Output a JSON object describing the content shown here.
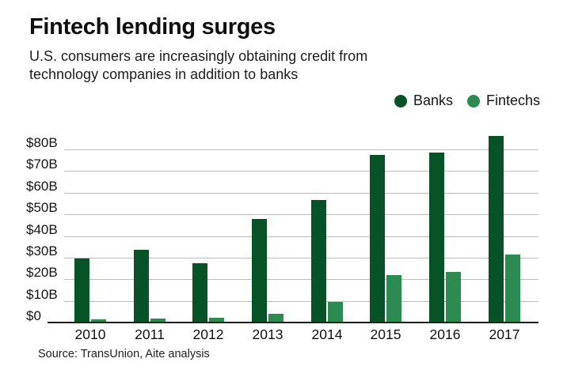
{
  "header": {
    "title": "Fintech lending surges",
    "subtitle_lines": [
      "U.S. consumers are increasingly obtaining credit from",
      "technology companies in addition to banks"
    ]
  },
  "legend": {
    "items": [
      {
        "label": "Banks",
        "color": "#075226"
      },
      {
        "label": "Fintechs",
        "color": "#2b8b50"
      }
    ]
  },
  "source": "Source: TransUnion, Aite analysis",
  "colors": {
    "banks": "#075226",
    "fintechs": "#2b8b50",
    "gridline": "#bcbcbc",
    "baseline": "#1c1c1c",
    "background": "#ffffff",
    "text": "#141414"
  },
  "chart_data": {
    "type": "bar",
    "title": "Fintech lending surges",
    "subtitle": "U.S. consumers are increasingly obtaining credit from technology companies in addition to banks",
    "categories": [
      "2010",
      "2011",
      "2012",
      "2013",
      "2014",
      "2015",
      "2016",
      "2017"
    ],
    "series": [
      {
        "name": "Banks",
        "color": "#075226",
        "values": [
          29,
          33,
          27,
          47.5,
          56,
          77,
          78,
          85.5
        ]
      },
      {
        "name": "Fintechs",
        "color": "#2b8b50",
        "values": [
          1,
          1.5,
          2,
          3.5,
          9,
          21.5,
          23,
          31
        ]
      }
    ],
    "unit": "billions of U.S. dollars",
    "y_ticks": [
      "$80B",
      "$70B",
      "$60B",
      "$50B",
      "$40B",
      "$30B",
      "$20B",
      "$10B",
      "$0"
    ],
    "y_tick_values": [
      80,
      70,
      60,
      50,
      40,
      30,
      20,
      10,
      0
    ],
    "ylim": [
      0,
      80
    ],
    "xlabel": "",
    "ylabel": "",
    "grid": "horizontal",
    "legend_position": "top-right",
    "source": "Source: TransUnion, Aite analysis"
  }
}
